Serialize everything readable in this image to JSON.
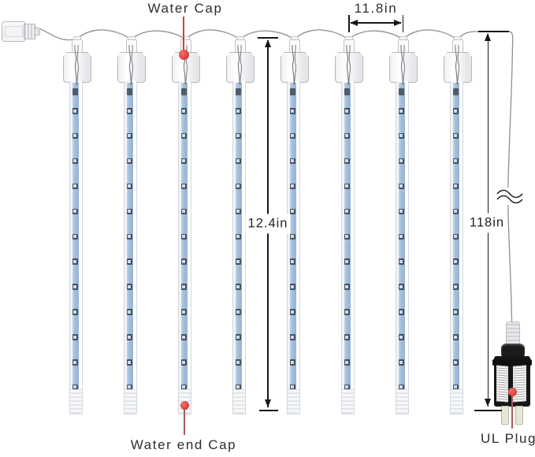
{
  "callouts": {
    "water_cap": "Water Cap",
    "water_end_cap": "Water end Cap",
    "ul_plug": "UL Plug"
  },
  "dimensions": {
    "tube_spacing": "11.8in",
    "tube_length": "12.4in",
    "lead_wire_length": "118in"
  },
  "diagram": {
    "tube_count": 8,
    "leds_per_tube": 12,
    "icons": {
      "callout_marker": "red-dot-icon",
      "wire_break": "double-tilde-break-icon"
    },
    "colors": {
      "strip_blue": "#a2bedb",
      "led_dark": "#46525f",
      "callout_red": "#dd3a3a",
      "leader_red": "#a85a5a",
      "dimension_black": "#171717",
      "wire_gray": "#8f8f8f",
      "plug_black": "#161616"
    }
  }
}
